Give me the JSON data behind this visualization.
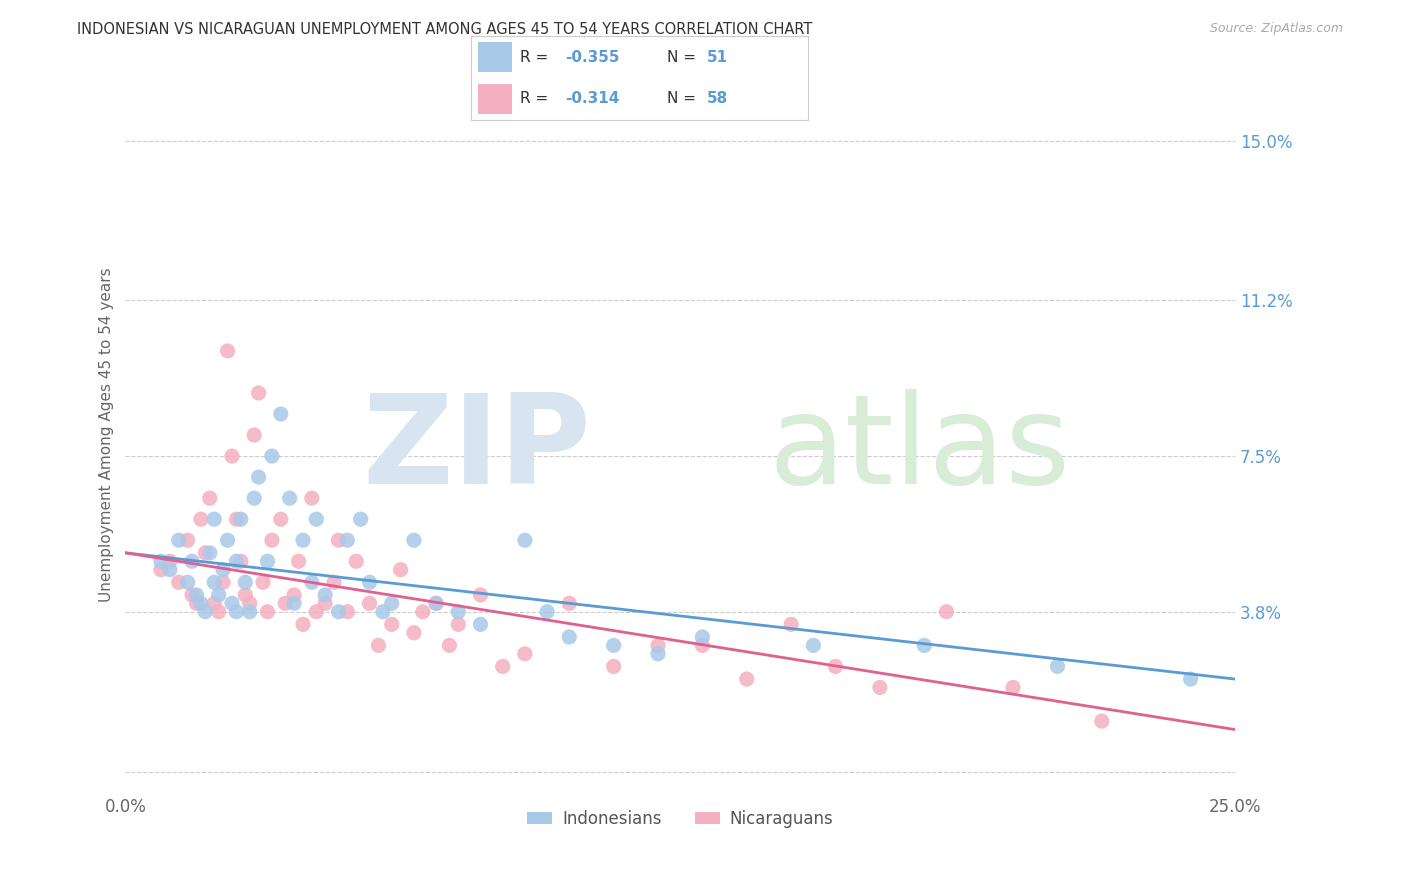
{
  "title": "INDONESIAN VS NICARAGUAN UNEMPLOYMENT AMONG AGES 45 TO 54 YEARS CORRELATION CHART",
  "source": "Source: ZipAtlas.com",
  "ylabel": "Unemployment Among Ages 45 to 54 years",
  "xlim": [
    0.0,
    0.25
  ],
  "ylim": [
    -0.005,
    0.165
  ],
  "xticks": [
    0.0,
    0.05,
    0.1,
    0.15,
    0.2,
    0.25
  ],
  "xticklabels": [
    "0.0%",
    "",
    "",
    "",
    "",
    "25.0%"
  ],
  "ytick_positions": [
    0.0,
    0.038,
    0.075,
    0.112,
    0.15
  ],
  "ytick_labels": [
    "",
    "3.8%",
    "7.5%",
    "11.2%",
    "15.0%"
  ],
  "indonesian_color": "#a8c8e8",
  "nicaraguan_color": "#f4afc0",
  "indonesian_line_color": "#5b9bd5",
  "nicaraguan_line_color": "#e06090",
  "R_indonesian": -0.355,
  "N_indonesian": 51,
  "R_nicaraguan": -0.314,
  "N_nicaraguan": 58,
  "background_color": "#ffffff",
  "grid_color": "#cccccc",
  "indonesian_scatter_x": [
    0.008,
    0.01,
    0.012,
    0.014,
    0.015,
    0.016,
    0.017,
    0.018,
    0.019,
    0.02,
    0.02,
    0.021,
    0.022,
    0.023,
    0.024,
    0.025,
    0.025,
    0.026,
    0.027,
    0.028,
    0.029,
    0.03,
    0.032,
    0.033,
    0.035,
    0.037,
    0.038,
    0.04,
    0.042,
    0.043,
    0.045,
    0.048,
    0.05,
    0.053,
    0.055,
    0.058,
    0.06,
    0.065,
    0.07,
    0.075,
    0.08,
    0.09,
    0.095,
    0.1,
    0.11,
    0.12,
    0.13,
    0.155,
    0.18,
    0.21,
    0.24
  ],
  "indonesian_scatter_y": [
    0.05,
    0.048,
    0.055,
    0.045,
    0.05,
    0.042,
    0.04,
    0.038,
    0.052,
    0.045,
    0.06,
    0.042,
    0.048,
    0.055,
    0.04,
    0.038,
    0.05,
    0.06,
    0.045,
    0.038,
    0.065,
    0.07,
    0.05,
    0.075,
    0.085,
    0.065,
    0.04,
    0.055,
    0.045,
    0.06,
    0.042,
    0.038,
    0.055,
    0.06,
    0.045,
    0.038,
    0.04,
    0.055,
    0.04,
    0.038,
    0.035,
    0.055,
    0.038,
    0.032,
    0.03,
    0.028,
    0.032,
    0.03,
    0.03,
    0.025,
    0.022
  ],
  "nicaraguan_scatter_x": [
    0.008,
    0.01,
    0.012,
    0.014,
    0.015,
    0.016,
    0.017,
    0.018,
    0.019,
    0.02,
    0.021,
    0.022,
    0.023,
    0.024,
    0.025,
    0.026,
    0.027,
    0.028,
    0.029,
    0.03,
    0.031,
    0.032,
    0.033,
    0.035,
    0.036,
    0.038,
    0.039,
    0.04,
    0.042,
    0.043,
    0.045,
    0.047,
    0.048,
    0.05,
    0.052,
    0.055,
    0.057,
    0.06,
    0.062,
    0.065,
    0.067,
    0.07,
    0.073,
    0.075,
    0.08,
    0.085,
    0.09,
    0.1,
    0.11,
    0.12,
    0.13,
    0.14,
    0.15,
    0.16,
    0.17,
    0.185,
    0.2,
    0.22
  ],
  "nicaraguan_scatter_y": [
    0.048,
    0.05,
    0.045,
    0.055,
    0.042,
    0.04,
    0.06,
    0.052,
    0.065,
    0.04,
    0.038,
    0.045,
    0.1,
    0.075,
    0.06,
    0.05,
    0.042,
    0.04,
    0.08,
    0.09,
    0.045,
    0.038,
    0.055,
    0.06,
    0.04,
    0.042,
    0.05,
    0.035,
    0.065,
    0.038,
    0.04,
    0.045,
    0.055,
    0.038,
    0.05,
    0.04,
    0.03,
    0.035,
    0.048,
    0.033,
    0.038,
    0.04,
    0.03,
    0.035,
    0.042,
    0.025,
    0.028,
    0.04,
    0.025,
    0.03,
    0.03,
    0.022,
    0.035,
    0.025,
    0.02,
    0.038,
    0.02,
    0.012
  ]
}
